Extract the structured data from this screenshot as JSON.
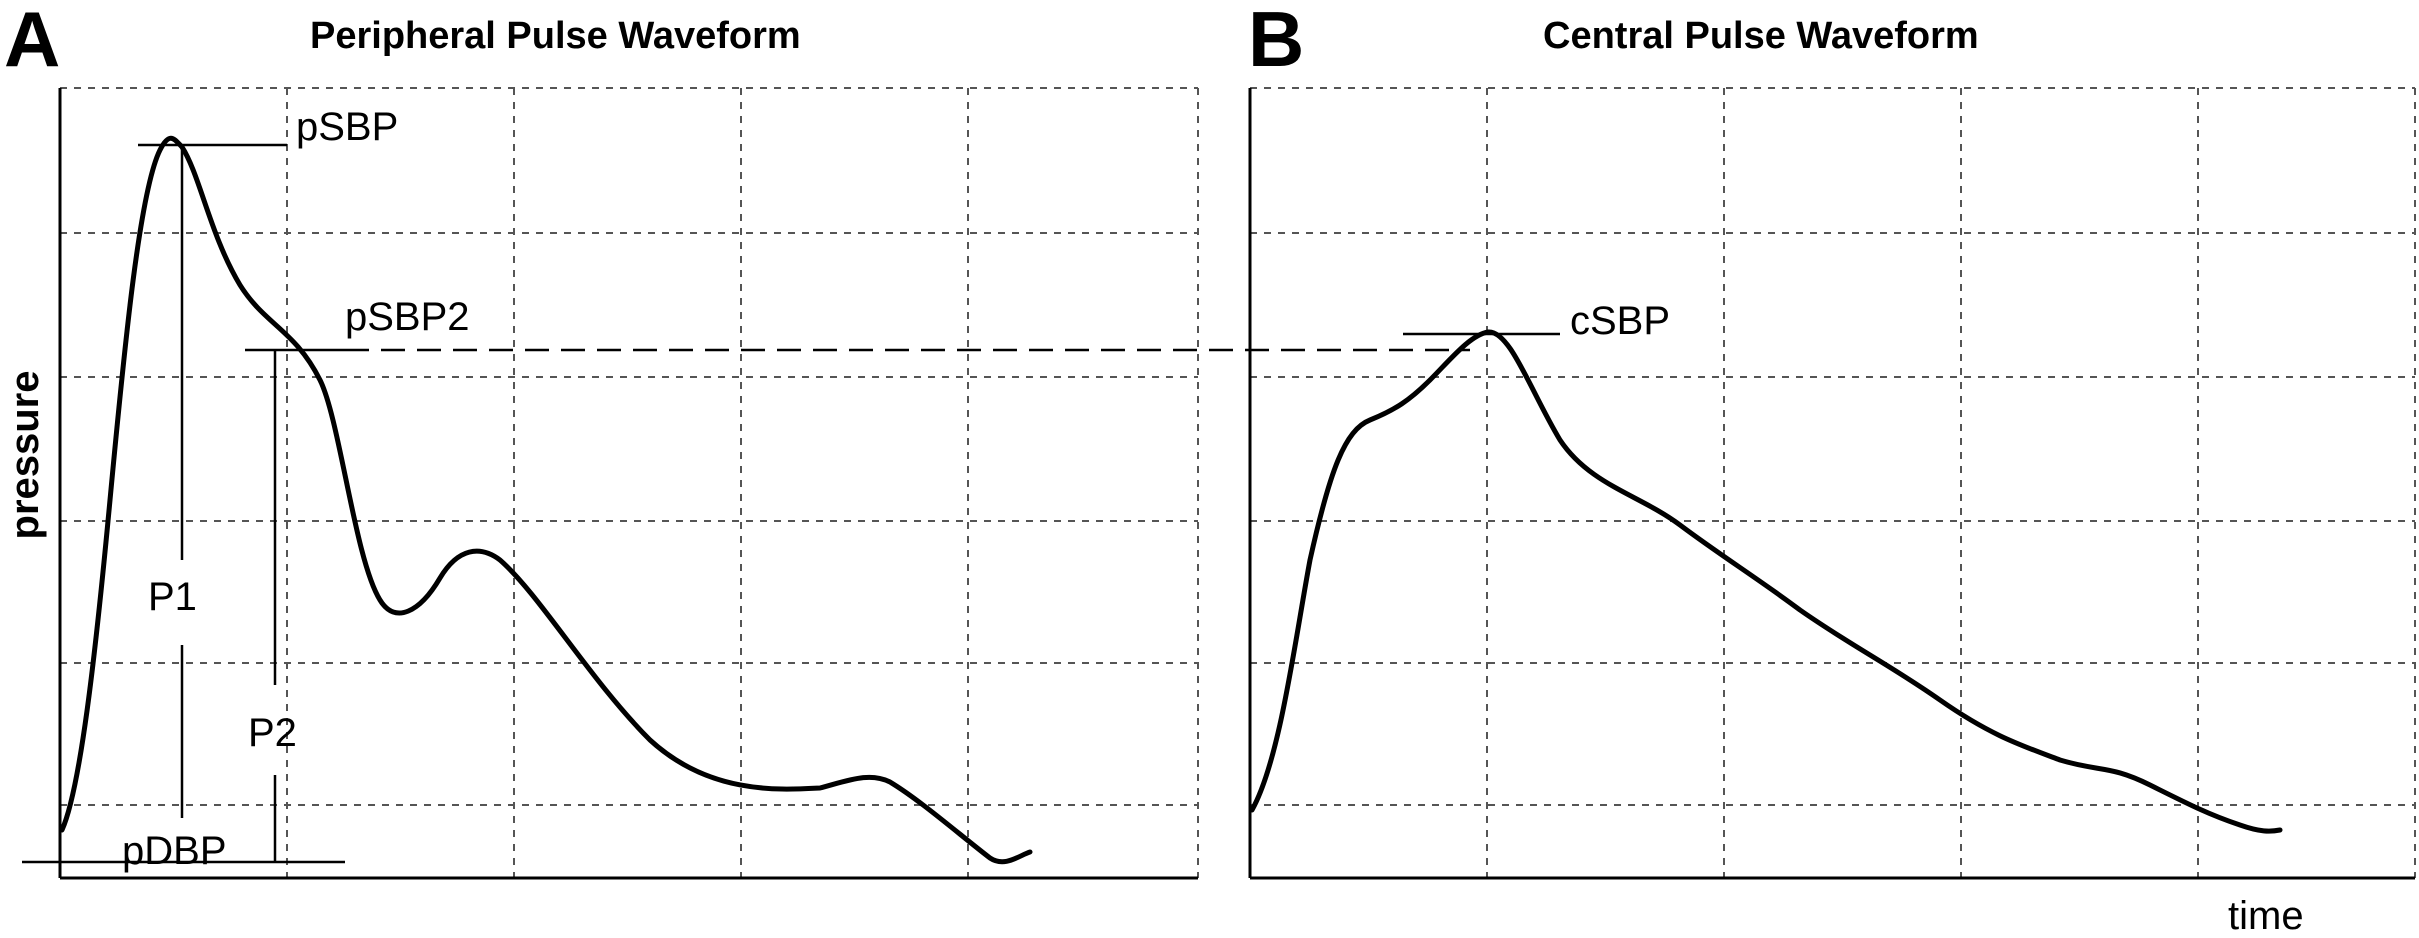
{
  "panels": {
    "a": {
      "letter": "A",
      "title": "Peripheral Pulse Waveform"
    },
    "b": {
      "letter": "B",
      "title": "Central Pulse Waveform"
    }
  },
  "axes": {
    "y_label": "pressure",
    "x_label": "time"
  },
  "annotations": {
    "psbp": "pSBP",
    "psbp2": "pSBP2",
    "pdbp": "pDBP",
    "p1": "P1",
    "p2": "P2",
    "csbp": "cSBP"
  },
  "colors": {
    "line": "#000000",
    "grid": "#555555",
    "background": "#ffffff"
  }
}
